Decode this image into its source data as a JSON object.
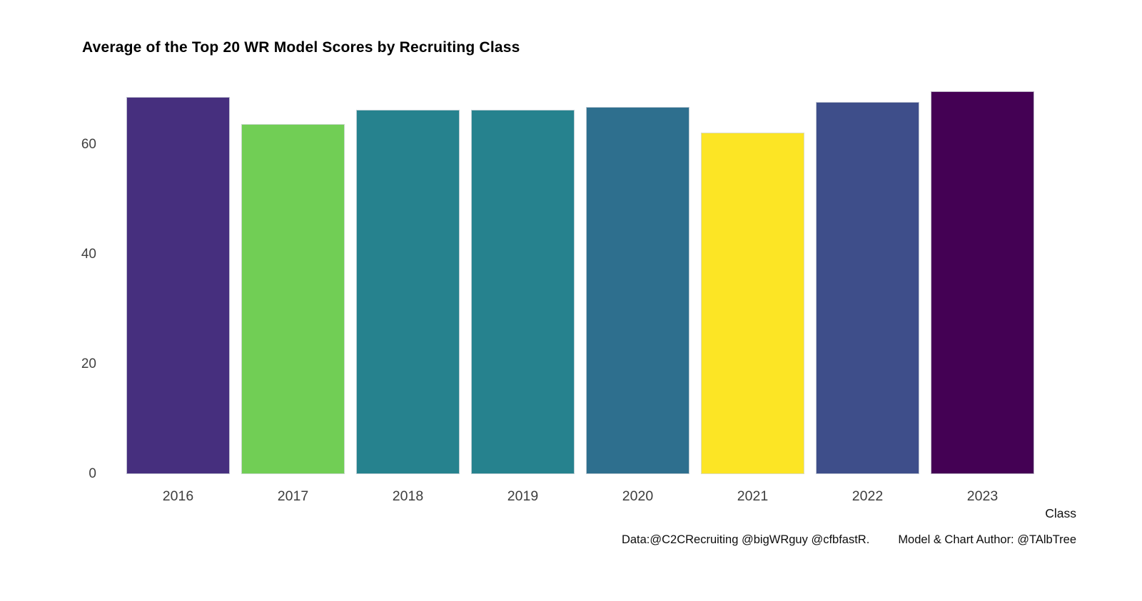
{
  "page": {
    "background_color": "#ffffff"
  },
  "title": "Average of the Top 20 WR Model Scores by Recruiting Class",
  "chart_data": {
    "type": "bar",
    "title": "Average of the Top 20 WR Model Scores by Recruiting Class",
    "categories": [
      "2016",
      "2017",
      "2018",
      "2019",
      "2020",
      "2021",
      "2022",
      "2023"
    ],
    "values": [
      68.7,
      63.8,
      66.4,
      66.4,
      66.9,
      62.2,
      67.8,
      69.7
    ],
    "bar_colors": [
      "#462F7E",
      "#71CE55",
      "#26828E",
      "#26828E",
      "#2E6F8E",
      "#FCE525",
      "#3E4E8A",
      "#440154"
    ],
    "xlabel": "Class",
    "ylabel": "",
    "yticks": [
      0,
      20,
      40,
      60
    ],
    "ylim": [
      0,
      73
    ],
    "grid": false,
    "legend": "none",
    "axis_text_color": "#404040",
    "palette_note": "viridis colors, darkest = highest score, yellow = lowest score"
  },
  "caption": {
    "data_credit": "Data:@C2CRecruiting @bigWRguy @cfbfastR.",
    "author_credit": "Model & Chart Author: @TAlbTree"
  }
}
